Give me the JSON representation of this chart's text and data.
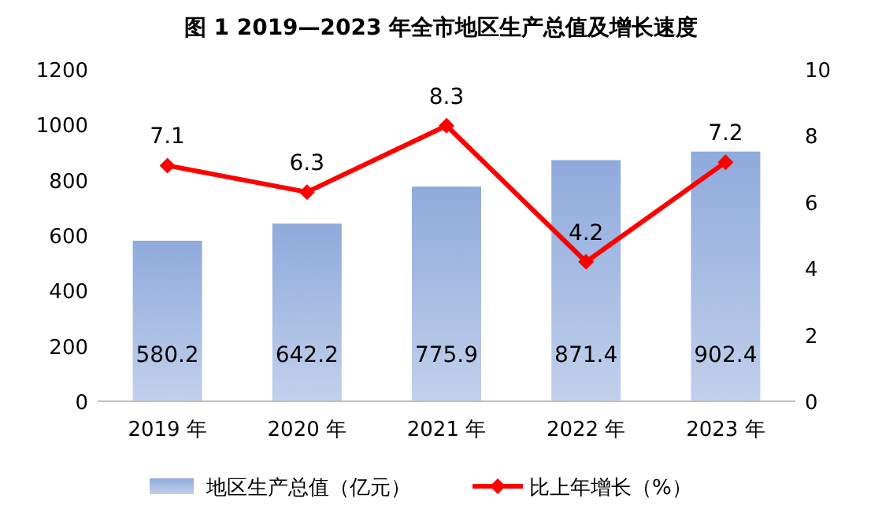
{
  "chart_data": {
    "type": "bar",
    "title": "图 1 2019—2023 年全市地区生产总值及增长速度",
    "categories": [
      "2019 年",
      "2020 年",
      "2021 年",
      "2022 年",
      "2023 年"
    ],
    "series": [
      {
        "name": "地区生产总值（亿元）",
        "color": "#8faadc",
        "values": [
          580.2,
          642.2,
          775.9,
          871.4,
          902.4
        ]
      },
      {
        "name": "比上年增长（%）",
        "type": "line",
        "axis": "y2",
        "color": "#ff0000",
        "marker": "diamond",
        "values": [
          7.1,
          6.3,
          8.3,
          4.2,
          7.2
        ]
      }
    ],
    "ylim": [
      0,
      1200
    ],
    "yticks": [
      0,
      200,
      400,
      600,
      800,
      1000,
      1200
    ],
    "y2lim": [
      0,
      10
    ],
    "y2ticks": [
      0,
      2,
      4,
      6,
      8,
      10
    ],
    "data_labels": true,
    "legend": "bottom",
    "grid": false
  }
}
